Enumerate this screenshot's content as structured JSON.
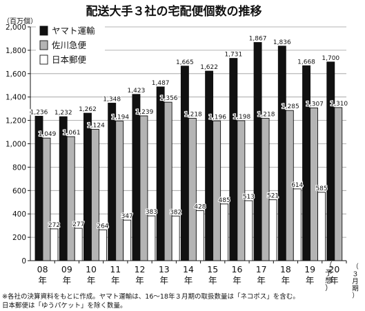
{
  "chart_data": {
    "type": "bar",
    "title": "配送大手３社の宅配便個数の推移",
    "ylabel": "（百万個）",
    "ylim": [
      0,
      2000
    ],
    "yticks": [
      "0",
      "200",
      "400",
      "600",
      "800",
      "1,000",
      "1,200",
      "1,400",
      "1,600",
      "1,800",
      "2,000"
    ],
    "grid": true,
    "legend_position": "top-left",
    "categories": [
      {
        "top": "08",
        "bottom": "年",
        "note": ""
      },
      {
        "top": "09",
        "bottom": "年",
        "note": ""
      },
      {
        "top": "10",
        "bottom": "年",
        "note": ""
      },
      {
        "top": "11",
        "bottom": "年",
        "note": ""
      },
      {
        "top": "12",
        "bottom": "年",
        "note": ""
      },
      {
        "top": "13",
        "bottom": "年",
        "note": ""
      },
      {
        "top": "14",
        "bottom": "年",
        "note": ""
      },
      {
        "top": "15",
        "bottom": "年",
        "note": ""
      },
      {
        "top": "16",
        "bottom": "年",
        "note": ""
      },
      {
        "top": "17",
        "bottom": "年",
        "note": ""
      },
      {
        "top": "18",
        "bottom": "年",
        "note": ""
      },
      {
        "top": "19",
        "bottom": "年",
        "note": ""
      },
      {
        "top": "20",
        "bottom": "年",
        "note": "（予想）"
      }
    ],
    "category_axis_note": "（３月期）",
    "series": [
      {
        "name": "ヤマト運輸",
        "color": "#111111",
        "values": [
          1236,
          1232,
          1262,
          1348,
          1423,
          1487,
          1665,
          1622,
          1731,
          1867,
          1836,
          1668,
          1700
        ],
        "labels": [
          "1,236",
          "1,232",
          "1,262",
          "1,348",
          "1,423",
          "1,487",
          "1,665",
          "1,622",
          "1,731",
          "1,867",
          "1,836",
          "1,668",
          "1,700"
        ]
      },
      {
        "name": "佐川急便",
        "color": "#b4b4b4",
        "values": [
          1049,
          1061,
          1124,
          1194,
          1239,
          1356,
          1218,
          1196,
          1198,
          1218,
          1285,
          1307,
          1310
        ],
        "labels": [
          "1,049",
          "1,061",
          "1,124",
          "1,194",
          "1,239",
          "1,356",
          "1,218",
          "1,196",
          "1,198",
          "1,218",
          "1,285",
          "1,307",
          "1,310"
        ]
      },
      {
        "name": "日本郵便",
        "color": "#ffffff",
        "values": [
          272,
          277,
          264,
          347,
          383,
          382,
          428,
          485,
          513,
          521,
          614,
          585,
          null
        ],
        "labels": [
          "272",
          "277",
          "264",
          "347",
          "383",
          "382",
          "428",
          "485",
          "513",
          "521",
          "614",
          "585",
          null
        ]
      }
    ],
    "footnote": [
      "※各社の決算資料をもとに作成。ヤマト運輸は、16～18年３月期の取扱数量は「ネコポス」を含む。",
      "日本郵便は「ゆうパケット」を除く数量。"
    ]
  }
}
